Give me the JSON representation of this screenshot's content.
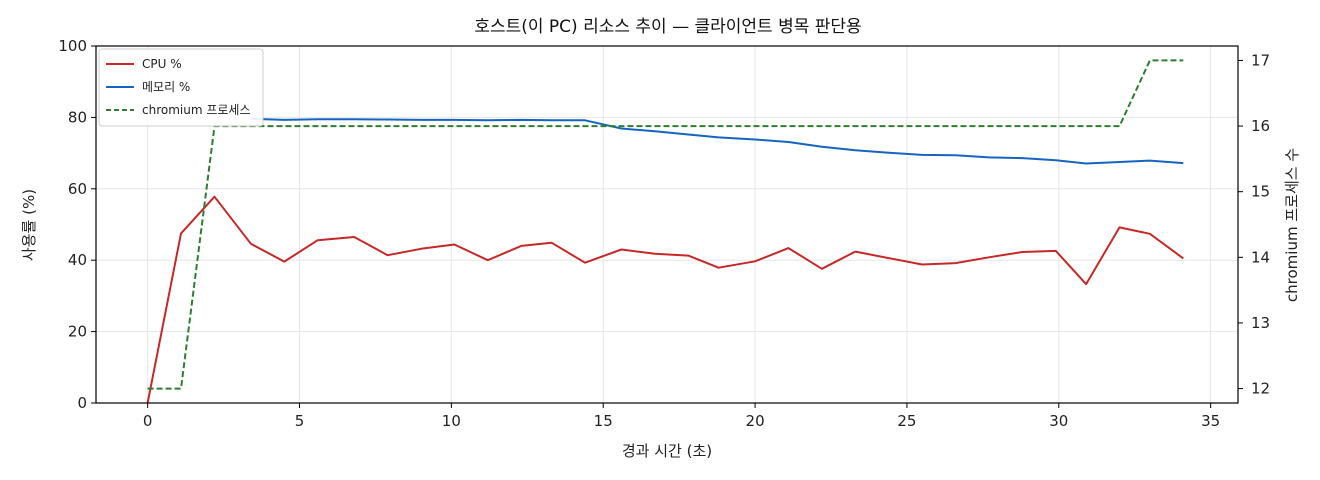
{
  "chart_data": {
    "type": "line",
    "title": "호스트(이 PC) 리소스 추이 — 클라이언트 병목 판단용",
    "xlabel": "경과 시간 (초)",
    "ylabel": "사용률 (%)",
    "y2label": "chromium 프로세스 수",
    "xlim": [
      -1.7,
      35.9
    ],
    "ylim": [
      0,
      100
    ],
    "y2lim": [
      11.78,
      17.22
    ],
    "xticks": [
      0,
      5,
      10,
      15,
      20,
      25,
      30,
      35
    ],
    "yticks": [
      0,
      20,
      40,
      60,
      80,
      100
    ],
    "y2ticks": [
      12,
      13,
      14,
      15,
      16,
      17
    ],
    "grid": true,
    "legend_position": "top-left",
    "x": [
      0,
      1.1,
      2.2,
      3.4,
      4.5,
      5.6,
      6.8,
      7.9,
      9.0,
      10.1,
      11.2,
      12.3,
      13.3,
      14.4,
      15.6,
      16.7,
      17.8,
      18.8,
      20.0,
      21.1,
      22.2,
      23.3,
      24.4,
      25.5,
      26.6,
      27.7,
      28.8,
      29.9,
      30.9,
      32.0,
      33.0,
      34.1
    ],
    "series": [
      {
        "name": "CPU %",
        "color": "#c62828",
        "axis": "left",
        "style": "solid",
        "values": [
          0,
          47.5,
          57.8,
          44.6,
          39.6,
          45.6,
          46.5,
          41.4,
          43.2,
          44.4,
          40.0,
          44.0,
          44.9,
          39.3,
          43.0,
          41.8,
          41.3,
          37.9,
          39.7,
          43.4,
          37.6,
          42.4,
          40.6,
          38.8,
          39.2,
          40.8,
          42.3,
          42.6,
          33.3,
          49.2,
          47.4,
          40.5
        ]
      },
      {
        "name": "메모리 %",
        "color": "#1565c0",
        "axis": "left",
        "style": "solid",
        "values": [
          null,
          null,
          null,
          79.6,
          79.3,
          79.5,
          79.5,
          79.4,
          79.3,
          79.3,
          79.2,
          79.3,
          79.2,
          79.2,
          76.9,
          76.1,
          75.2,
          74.4,
          73.8,
          73.1,
          71.8,
          70.8,
          70.1,
          69.5,
          69.4,
          68.8,
          68.6,
          68.0,
          67.1,
          67.5,
          67.9,
          67.2
        ]
      },
      {
        "name": "chromium 프로세스",
        "color": "#2e7d32",
        "axis": "right",
        "style": "dashed",
        "values": [
          12,
          12,
          16,
          16,
          16,
          16,
          16,
          16,
          16,
          16,
          16,
          16,
          16,
          16,
          16,
          16,
          16,
          16,
          16,
          16,
          16,
          16,
          16,
          16,
          16,
          16,
          16,
          16,
          16,
          16,
          17,
          17
        ]
      }
    ]
  }
}
